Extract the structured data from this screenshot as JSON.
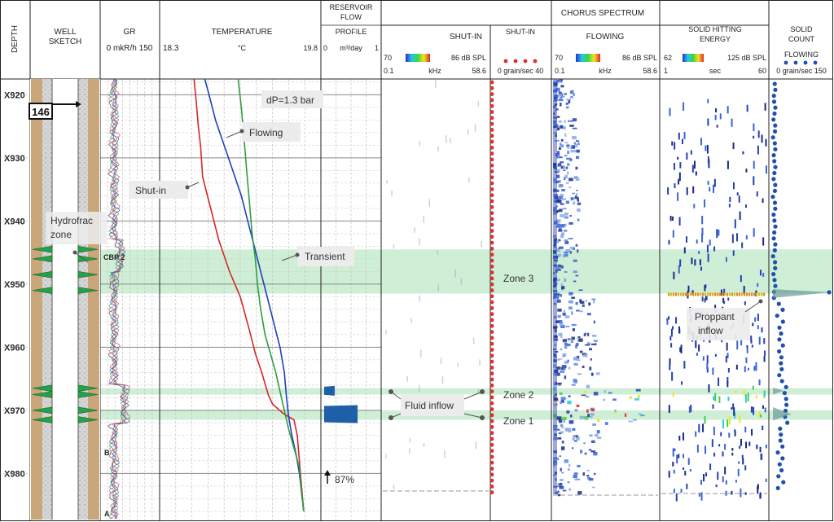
{
  "header": {
    "depth": "DEPTH",
    "well_sketch_1": "WELL",
    "well_sketch_2": "SKETCH",
    "gr_title": "GR",
    "gr_scale": "0 mkR/h 150",
    "temp_title": "TEMPERATURE",
    "temp_min": "18.3",
    "temp_unit": "°C",
    "temp_max": "19.8",
    "flow_title_1": "RESERVOIR",
    "flow_title_2": "FLOW",
    "flow_profile": "PROFILE",
    "flow_scale_min": "0",
    "flow_scale_unit": "m³/day",
    "flow_scale_max": "1",
    "chorus": "CHORUS SPECTRUM",
    "shutin": "SHUT-IN",
    "shutin_db_min": "70",
    "shutin_db_max": "86 dB SPL",
    "shutin_khz_min": "0.1",
    "shutin_khz_unit": "kHz",
    "shutin_khz_max": "58.6",
    "shutin_count_title": "SHUT-IN",
    "shutin_count_scale": "0 grain/sec 40",
    "flowing": "FLOWING",
    "flowing_db_min": "70",
    "flowing_db_max": "86 dB SPL",
    "flowing_khz_min": "0.1",
    "flowing_khz_unit": "kHz",
    "flowing_khz_max": "58.6",
    "solid_hit_1": "SOLID HITTING",
    "solid_hit_2": "ENERGY",
    "solid_db_min": "62",
    "solid_db_max": "125 dB SPL",
    "solid_sec_min": "1",
    "solid_sec_unit": "sec",
    "solid_sec_max": "60",
    "solid_count_1": "SOLID",
    "solid_count_2": "COUNT",
    "solid_flowing": "FLOWING",
    "solid_count_scale": "0 grain/sec 150"
  },
  "annotations": {
    "marker": "146",
    "dp": "dP=1.3 bar",
    "flowing": "Flowing",
    "shutin": "Shut-in",
    "hydrofrac_1": "Hydrofrac",
    "hydrofrac_2": "zone",
    "cbp": "CBP 2",
    "transient": "Transient",
    "fluid_inflow": "Fluid inflow",
    "zone3": "Zone 3",
    "zone2": "Zone 2",
    "zone1": "Zone 1",
    "proppant_1": "Proppant",
    "proppant_2": "inflow",
    "percent": "87%",
    "marker_b": "B",
    "marker_a": "A"
  },
  "chart_data": [
    {
      "type": "line",
      "title": "TEMPERATURE",
      "x_unit": "°C",
      "xlim": [
        18.3,
        19.8
      ],
      "y_label": "DEPTH",
      "y_ticks": [
        "X920",
        "X930",
        "X940",
        "X950",
        "X960",
        "X970",
        "X980"
      ],
      "series": [
        {
          "name": "Shut-in",
          "color": "#d62728",
          "x": [
            18.62,
            18.64,
            18.66,
            18.68,
            18.7,
            18.76,
            18.85,
            18.95,
            19.05,
            19.13,
            19.19,
            19.25,
            19.31,
            19.35,
            19.45,
            19.55,
            19.58,
            19.6,
            19.62,
            19.64
          ],
          "depth": [
            917.5,
            921,
            925,
            928,
            933,
            937,
            943,
            948,
            952,
            957,
            961,
            964,
            967.5,
            969,
            970.5,
            971.5,
            974,
            978,
            982,
            986
          ]
        },
        {
          "name": "Flowing",
          "color": "#1f3fbf",
          "x": [
            18.72,
            18.76,
            18.82,
            18.9,
            18.98,
            19.06,
            19.12,
            19.18,
            19.24,
            19.3,
            19.36,
            19.42,
            19.46,
            19.48,
            19.5,
            19.53,
            19.57,
            19.6,
            19.62,
            19.64
          ],
          "depth": [
            917.5,
            920,
            924,
            928,
            932,
            936,
            940,
            944,
            948,
            952,
            956,
            960,
            964,
            968,
            971,
            974,
            977,
            980,
            983,
            986
          ]
        },
        {
          "name": "Transient",
          "color": "#2e9e3e",
          "x": [
            19.03,
            19.06,
            19.08,
            19.1,
            19.12,
            19.14,
            19.16,
            19.19,
            19.21,
            19.24,
            19.28,
            19.33,
            19.38,
            19.42,
            19.46,
            19.5,
            19.55,
            19.6,
            19.62,
            19.64
          ],
          "depth": [
            917.5,
            922,
            926,
            930,
            934,
            938,
            942,
            946,
            950,
            954,
            958,
            961,
            964,
            967,
            970,
            973,
            976,
            979,
            983,
            986
          ]
        }
      ]
    },
    {
      "type": "bar",
      "title": "RESERVOIR FLOW PROFILE",
      "x_unit": "m³/day",
      "xlim": [
        0,
        1
      ],
      "categories": [
        "Zone 2",
        "Zone 1"
      ],
      "values": [
        0.13,
        0.87
      ],
      "color": "#1f5fa8"
    },
    {
      "type": "line",
      "title": "GR",
      "x_unit": "mkR/h",
      "xlim": [
        0,
        150
      ],
      "series": [
        {
          "name": "GR",
          "color": "#444444",
          "x": [
            30,
            45,
            28,
            60,
            35,
            48,
            25,
            70,
            30,
            55,
            40,
            65,
            32,
            50,
            28,
            58,
            42,
            35,
            62,
            30
          ],
          "depth": [
            917,
            921,
            925,
            929,
            933,
            937,
            941,
            945,
            949,
            953,
            957,
            961,
            965,
            969,
            972,
            975,
            978,
            981,
            984,
            987
          ]
        }
      ]
    }
  ],
  "zones": [
    {
      "label": "Zone 3",
      "top": 944.5,
      "bottom": 951.5
    },
    {
      "label": "Zone 2",
      "top": 966.5,
      "bottom": 967.5
    },
    {
      "label": "Zone 1",
      "top": 970,
      "bottom": 971.5
    }
  ]
}
